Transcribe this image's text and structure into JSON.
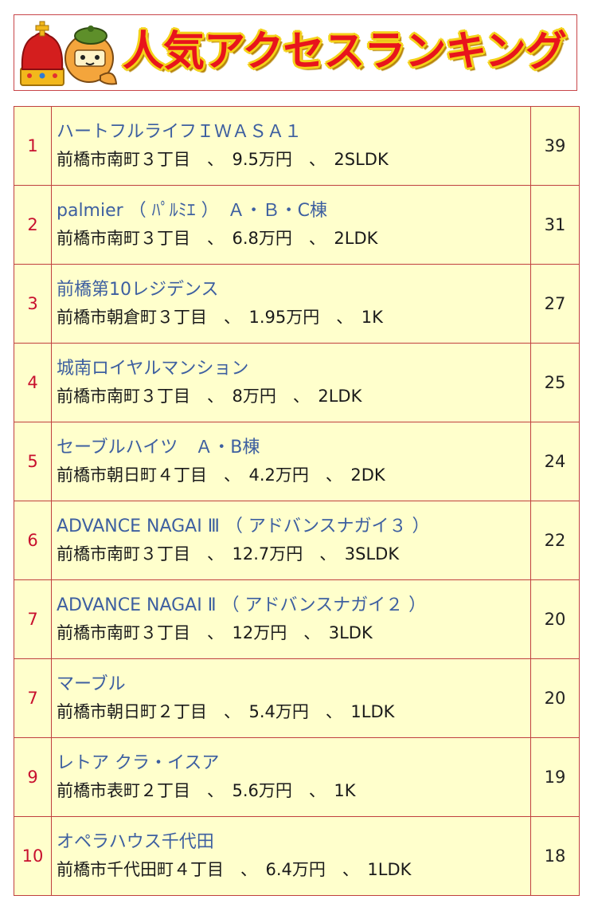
{
  "header": {
    "title": "人気アクセスランキング",
    "colors": {
      "title": "#e8141c",
      "outline": "#f4d21a",
      "crown": "#d41e1e",
      "crown_band": "#f2b81c"
    },
    "icons": [
      "crown-icon",
      "mascot-icon"
    ]
  },
  "ranking": [
    {
      "rank": "1",
      "name": "ハートフルライフＩＷＡＳＡ１",
      "detail": "前橋市南町３丁目　、　9.5万円　、　2SLDK",
      "count": "39"
    },
    {
      "rank": "2",
      "name": "palmier （ ﾊﾟﾙﾐｴ ）　Ａ・Ｂ・C棟",
      "detail": "前橋市南町３丁目　、　6.8万円　、　2LDK",
      "count": "31"
    },
    {
      "rank": "3",
      "name": "前橋第10レジデンス",
      "detail": "前橋市朝倉町３丁目　、　1.95万円　、　1K",
      "count": "27"
    },
    {
      "rank": "4",
      "name": "城南ロイヤルマンション",
      "detail": "前橋市南町３丁目　、　8万円　、　2LDK",
      "count": "25"
    },
    {
      "rank": "5",
      "name": "セーブルハイツ　Ａ・B棟",
      "detail": "前橋市朝日町４丁目　、　4.2万円　、　2DK",
      "count": "24"
    },
    {
      "rank": "6",
      "name": "ADVANCE NAGAI Ⅲ （ アドバンスナガイ３ ）",
      "detail": "前橋市南町３丁目　、　12.7万円　、　3SLDK",
      "count": "22"
    },
    {
      "rank": "7",
      "name": "ADVANCE NAGAI Ⅱ （ アドバンスナガイ２ ）",
      "detail": "前橋市南町３丁目　、　12万円　、　3LDK",
      "count": "20"
    },
    {
      "rank": "7",
      "name": "マーブル",
      "detail": "前橋市朝日町２丁目　、　5.4万円　、　1LDK",
      "count": "20"
    },
    {
      "rank": "9",
      "name": "レトア クラ・イスア",
      "detail": "前橋市表町２丁目　、　5.6万円　、　1K",
      "count": "19"
    },
    {
      "rank": "10",
      "name": "オペラハウス千代田",
      "detail": "前橋市千代田町４丁目　、　6.4万円　、　1LDK",
      "count": "18"
    }
  ],
  "colors": {
    "row_bg": "#ffffcc",
    "border": "#c0403f",
    "rank": "#c8102e",
    "name_link": "#3d5fa0"
  }
}
